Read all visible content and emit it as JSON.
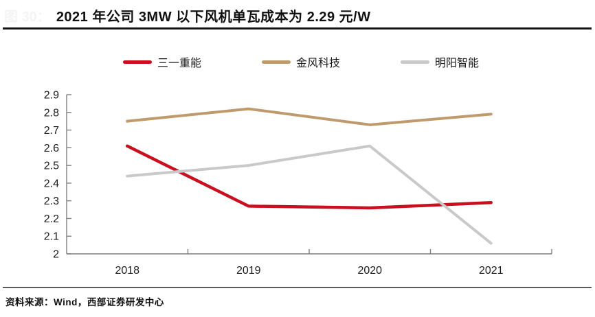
{
  "header": {
    "figure_label": "图 30：",
    "title": "2021 年公司 3MW 以下风机单瓦成本为 2.29 元/W"
  },
  "legend": [
    {
      "label": "三一重能",
      "color": "#c8101e"
    },
    {
      "label": "金风科技",
      "color": "#be9a6d"
    },
    {
      "label": "明阳智能",
      "color": "#c9c9c9"
    }
  ],
  "footer": {
    "source_text": "资料来源：Wind，西部证券研发中心"
  },
  "colors": {
    "axis": "#7f7f7f",
    "tick_label": "#1a1a1a",
    "title_rule": "#161616",
    "footer_rule": "#5a5a5a"
  },
  "chart_data": {
    "type": "line",
    "title": "2021 年公司 3MW 以下风机单瓦成本为 2.29 元/W",
    "categories": [
      "2018",
      "2019",
      "2020",
      "2021"
    ],
    "series": [
      {
        "name": "三一重能",
        "color": "#c8101e",
        "values": [
          2.61,
          2.27,
          2.26,
          2.29
        ]
      },
      {
        "name": "金风科技",
        "color": "#be9a6d",
        "values": [
          2.75,
          2.82,
          2.73,
          2.79
        ]
      },
      {
        "name": "明阳智能",
        "color": "#c9c9c9",
        "values": [
          2.44,
          2.5,
          2.61,
          2.06
        ]
      }
    ],
    "xlabel": "",
    "ylabel": "",
    "ylim": [
      2.0,
      2.9
    ],
    "ytick_step": 0.1,
    "yticks": [
      "2.9",
      "2.8",
      "2.7",
      "2.6",
      "2.5",
      "2.4",
      "2.3",
      "2.2",
      "2.1",
      "2"
    ],
    "grid": false,
    "legend_position": "top"
  }
}
